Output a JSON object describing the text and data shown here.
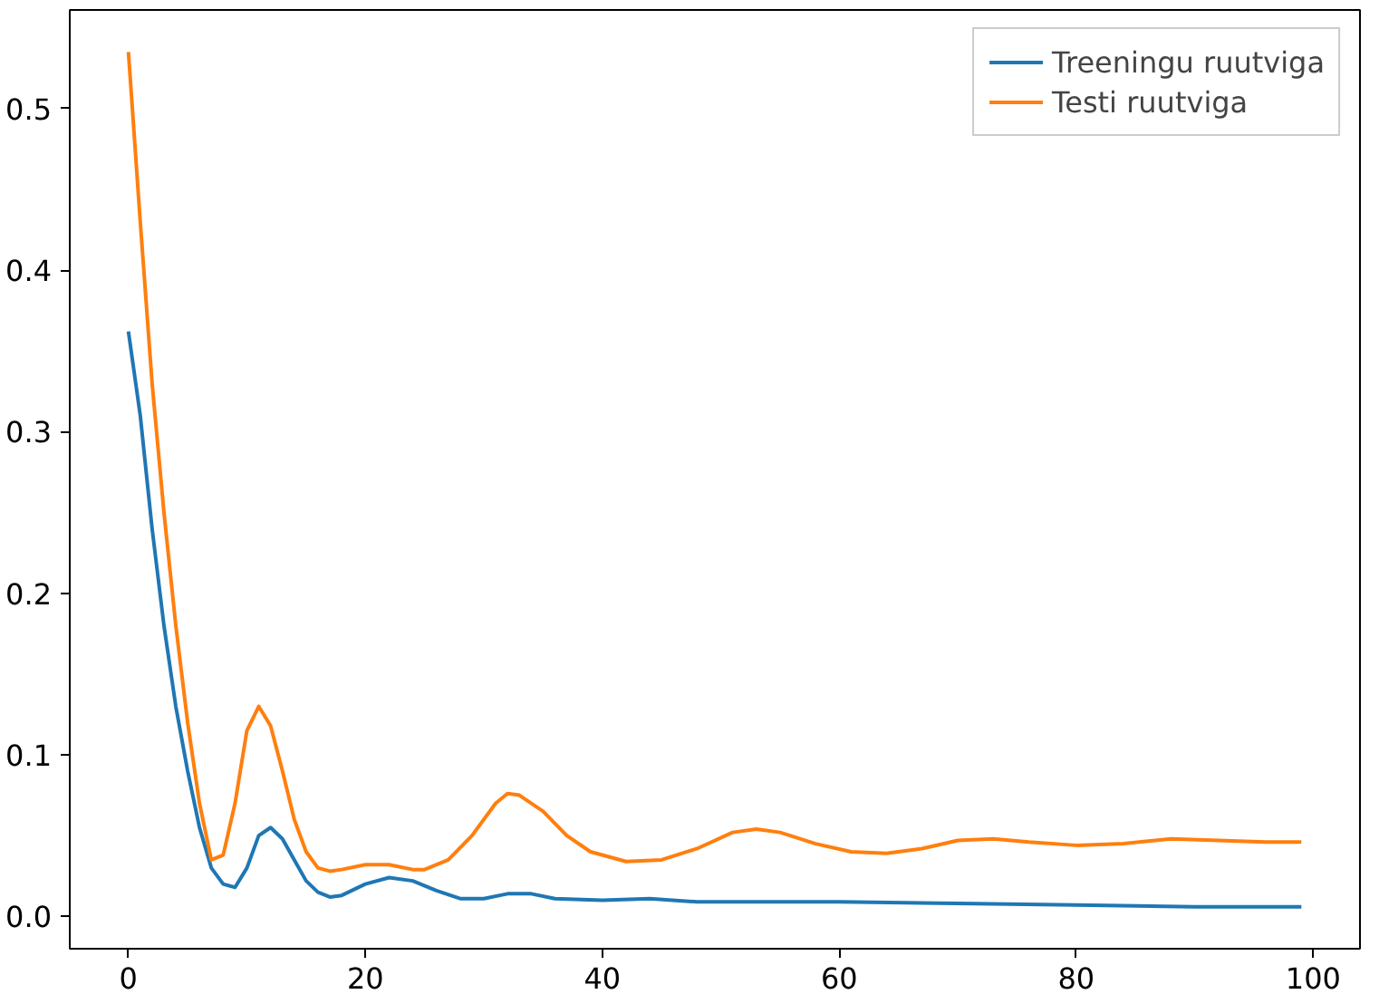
{
  "chart_data": {
    "type": "line",
    "xlim": [
      -4.95,
      103.95
    ],
    "ylim": [
      -0.02,
      0.561
    ],
    "xticks": [
      0,
      20,
      40,
      60,
      80,
      100
    ],
    "yticks": [
      {
        "value": 0,
        "label": "0.0"
      },
      0.1,
      0.2,
      0.3,
      0.4,
      0.5
    ],
    "grid": false,
    "legend": "top right",
    "line_style": "solid",
    "marker": "none",
    "series": [
      {
        "name": "Treeningu ruutviga",
        "color": "#1f77b4",
        "x": [
          0,
          1,
          2,
          3,
          4,
          5,
          6,
          7,
          8,
          9,
          10,
          11,
          12,
          13,
          14,
          15,
          16,
          17,
          18,
          20,
          22,
          24,
          26,
          28,
          30,
          32,
          34,
          36,
          40,
          44,
          48,
          55,
          60,
          70,
          80,
          90,
          99
        ],
        "values": [
          0.362,
          0.31,
          0.24,
          0.18,
          0.13,
          0.09,
          0.055,
          0.03,
          0.02,
          0.018,
          0.03,
          0.05,
          0.055,
          0.048,
          0.035,
          0.022,
          0.015,
          0.012,
          0.013,
          0.02,
          0.024,
          0.022,
          0.016,
          0.011,
          0.011,
          0.014,
          0.014,
          0.011,
          0.01,
          0.011,
          0.009,
          0.009,
          0.009,
          0.008,
          0.007,
          0.006,
          0.006
        ]
      },
      {
        "name": "Testi ruutviga",
        "color": "#ff7f0e",
        "x": [
          0,
          1,
          2,
          3,
          4,
          5,
          6,
          7,
          8,
          9,
          10,
          11,
          12,
          13,
          14,
          15,
          16,
          17,
          18,
          20,
          22,
          24,
          25,
          27,
          29,
          31,
          32,
          33,
          35,
          37,
          39,
          42,
          45,
          48,
          51,
          53,
          55,
          58,
          61,
          64,
          67,
          70,
          73,
          76,
          80,
          84,
          88,
          92,
          96,
          99
        ],
        "values": [
          0.535,
          0.43,
          0.33,
          0.25,
          0.18,
          0.12,
          0.07,
          0.035,
          0.038,
          0.07,
          0.115,
          0.13,
          0.118,
          0.09,
          0.06,
          0.04,
          0.03,
          0.028,
          0.029,
          0.032,
          0.032,
          0.029,
          0.029,
          0.035,
          0.05,
          0.07,
          0.076,
          0.075,
          0.065,
          0.05,
          0.04,
          0.034,
          0.035,
          0.042,
          0.052,
          0.054,
          0.052,
          0.045,
          0.04,
          0.039,
          0.042,
          0.047,
          0.048,
          0.046,
          0.044,
          0.045,
          0.048,
          0.047,
          0.046,
          0.046
        ]
      }
    ]
  }
}
